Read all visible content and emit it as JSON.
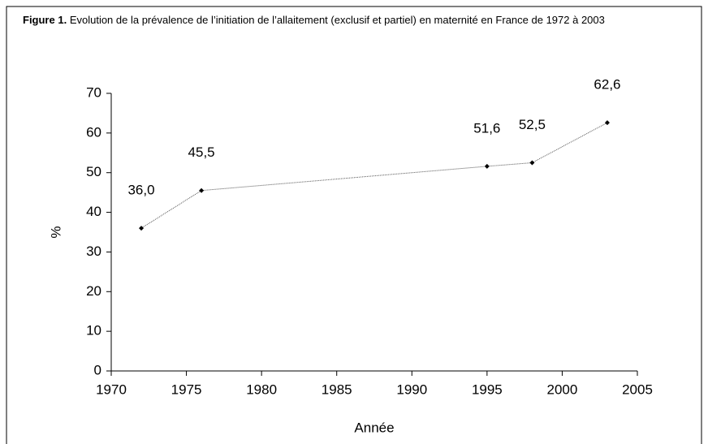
{
  "chart_data": {
    "type": "line",
    "title_label": "Figure 1.",
    "title": "Evolution de la prévalence de l’initiation de l’allaitement (exclusif et partiel) en maternité en France de 1972 à 2003",
    "x": [
      1972,
      1976,
      1995,
      1998,
      2003
    ],
    "series": [
      {
        "values": [
          36.0,
          45.5,
          51.6,
          52.5,
          62.6
        ],
        "value_labels": [
          "36,0",
          "45,5",
          "51,6",
          "52,5",
          "62,6"
        ],
        "color": "#555555"
      }
    ],
    "xlim": [
      1970,
      2005
    ],
    "xticks": [
      1970,
      1975,
      1980,
      1985,
      1990,
      1995,
      2000,
      2005
    ],
    "ylim": [
      0,
      70
    ],
    "yticks": [
      0,
      10,
      20,
      30,
      40,
      50,
      60,
      70
    ],
    "xlabel": "Année",
    "ylabel": "%"
  }
}
